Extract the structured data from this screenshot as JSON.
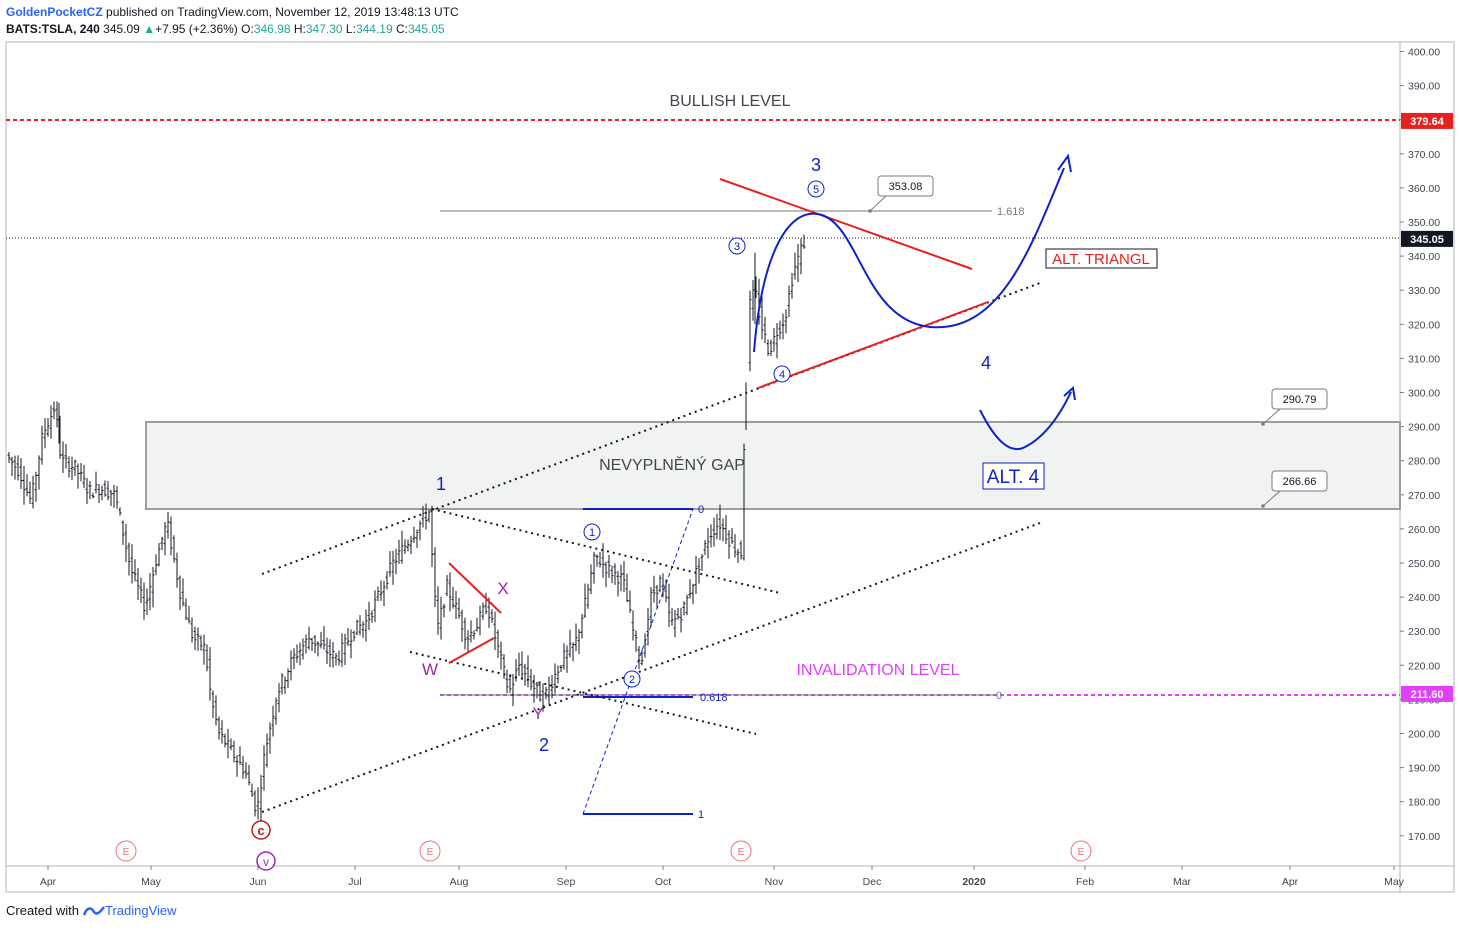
{
  "header": {
    "author": "GoldenPocketCZ",
    "published": "published on TradingView.com, November 12, 2019 13:48:13 UTC",
    "symbol": "BATS:TSLA, 240",
    "last": "345.09",
    "change": "+7.95 (+2.36%)",
    "o_label": "O:",
    "o": "346.98",
    "h_label": "H:",
    "h": "347.30",
    "l_label": "L:",
    "l": "344.19",
    "c_label": "C:",
    "c": "345.05"
  },
  "footer": {
    "created_with": "Created with",
    "brand": "TradingView"
  },
  "colors": {
    "blue": "#0d22c7",
    "red": "#e8201e",
    "magenta": "#e040fb",
    "purple": "#9c27b0",
    "dark_red": "#b71c1c"
  },
  "chart_data": {
    "type": "candlestick",
    "ylim": [
      160,
      405
    ],
    "y_ticks": [
      "400.00",
      "390.00",
      "380.00",
      "370.00",
      "360.00",
      "350.00",
      "340.00",
      "330.00",
      "320.00",
      "310.00",
      "300.00",
      "290.00",
      "280.00",
      "270.00",
      "260.00",
      "250.00",
      "240.00",
      "230.00",
      "220.00",
      "210.00",
      "200.00",
      "190.00",
      "180.00",
      "170.00"
    ],
    "x_ticks": [
      "Apr",
      "May",
      "Jun",
      "Jul",
      "Aug",
      "Sep",
      "Oct",
      "Nov",
      "Dec",
      "2020",
      "Feb",
      "Mar",
      "Apr",
      "May"
    ],
    "price_badges": [
      {
        "label": "379.64",
        "value": 379.64,
        "color": "#e8201e"
      },
      {
        "label": "345.05",
        "value": 345.05,
        "color": "#131722"
      },
      {
        "label": "211.60",
        "value": 211.6,
        "color": "#e040fb"
      }
    ],
    "callouts": [
      {
        "label": "353.08",
        "value": 353.08
      },
      {
        "label": "290.79",
        "value": 290.79
      },
      {
        "label": "266.66",
        "value": 266.66
      }
    ],
    "fib_labels": {
      "f1618": "1.618",
      "f0618": "0.618",
      "zero": "0",
      "zero2": "0",
      "one": "1"
    },
    "annotations": {
      "bullish": "BULLISH LEVEL",
      "gap": "NEVYPLNĚNÝ GAP",
      "invalidation": "INVALIDATION LEVEL",
      "alt_triangle": "ALT. TRIANGL",
      "alt4": "ALT. 4",
      "wave1": "1",
      "wave2": "2",
      "wave3": "3",
      "wave4": "4",
      "w": "W",
      "x": "X",
      "y": "Y",
      "c": "c",
      "v": "v",
      "s1": "1",
      "s2": "2",
      "s3": "3",
      "s4": "4",
      "s5": "5",
      "earnings": "E"
    },
    "levels": {
      "bullish": 379.64,
      "current": 345.05,
      "invalidation": 211.6,
      "gap_top": 291.5,
      "gap_bottom": 266.66
    }
  }
}
